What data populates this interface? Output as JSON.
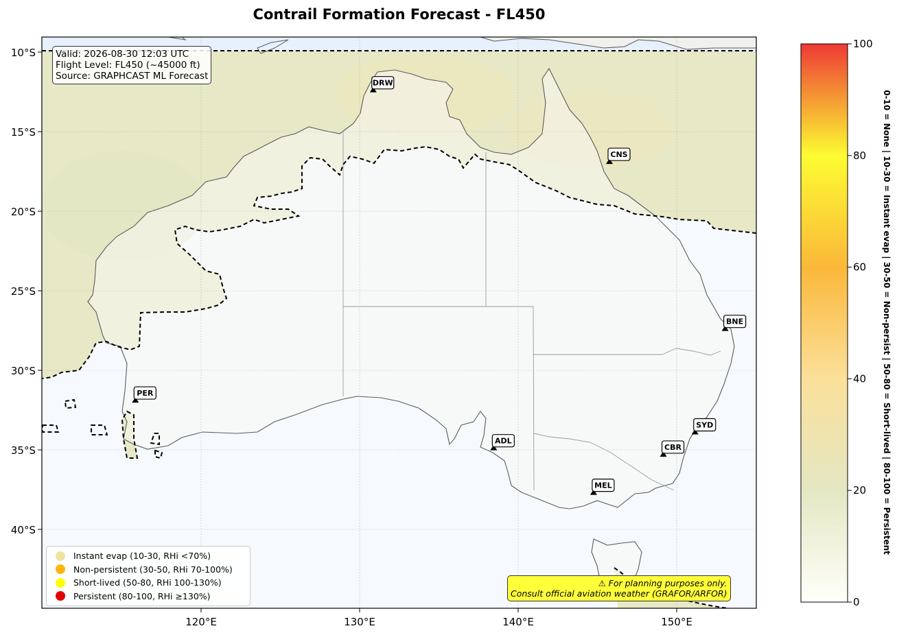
{
  "title": "Contrail Formation Forecast - FL450",
  "info": {
    "valid": "Valid: 2026-08-30 12:03 UTC",
    "flight_level": "Flight Level: FL450 (~45000 ft)",
    "source": "Source: GRAPHCAST ML Forecast"
  },
  "lat_ticks": [
    "10°S",
    "15°S",
    "20°S",
    "25°S",
    "30°S",
    "35°S",
    "40°S"
  ],
  "lon_ticks": [
    "120°E",
    "130°E",
    "140°E",
    "150°E"
  ],
  "colorbar": {
    "ticks": [
      "0",
      "20",
      "40",
      "60",
      "80",
      "100"
    ],
    "colors": [
      "#fffffa",
      "#e4e7c3",
      "#fbe09a",
      "#fbb83a",
      "#fcfc32",
      "#ee3a35"
    ],
    "description": "0-10 = None  |  10-30 = Instant evap  |  30-50 = Non-persist  |  50-80 = Short-lived  |  80-100 = Persistent"
  },
  "airports": [
    {
      "code": "DRW",
      "lat": -12.4,
      "lon": 130.9
    },
    {
      "code": "CNS",
      "lat": -16.9,
      "lon": 145.8
    },
    {
      "code": "BNE",
      "lat": -27.4,
      "lon": 153.1
    },
    {
      "code": "PER",
      "lat": -31.9,
      "lon": 115.9
    },
    {
      "code": "ADL",
      "lat": -34.9,
      "lon": 138.5
    },
    {
      "code": "SYD",
      "lat": -33.9,
      "lon": 151.2
    },
    {
      "code": "CBR",
      "lat": -35.3,
      "lon": 149.2
    },
    {
      "code": "MEL",
      "lat": -37.7,
      "lon": 144.8
    }
  ],
  "legend": [
    {
      "label": "Instant evap (10-30, RHi <70%)",
      "color": "#f0e2a0"
    },
    {
      "label": "Non-persistent (30-50, RHi 70-100%)",
      "color": "#ffb60c"
    },
    {
      "label": "Short-lived (50-80, RHi 100-130%)",
      "color": "#ffff00"
    },
    {
      "label": "Persistent (80-100, RHi ≥130%)",
      "color": "#e50000"
    }
  ],
  "disclaimer": {
    "line1": "⚠ For planning purposes only.",
    "line2": "Consult official aviation weather (GRAFOR/ARFOR)"
  }
}
